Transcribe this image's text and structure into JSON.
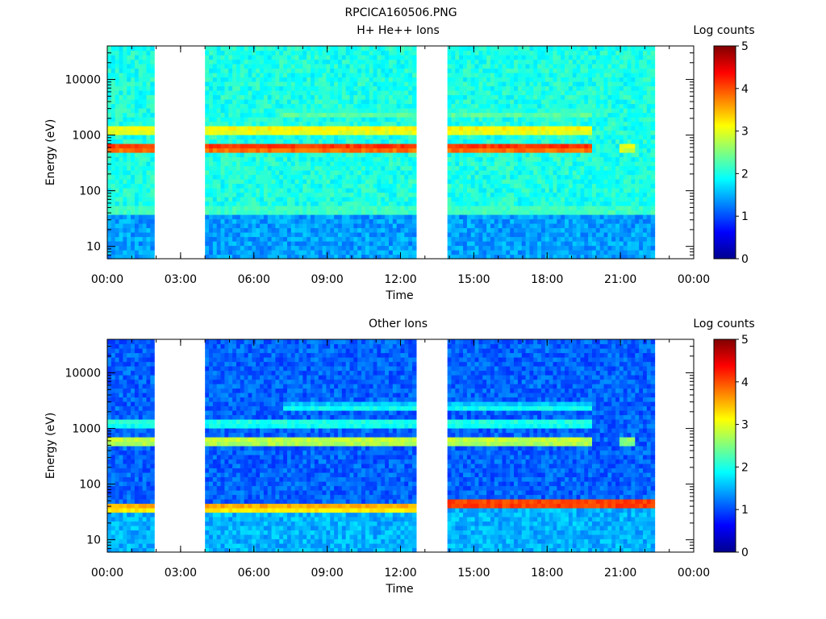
{
  "figure": {
    "title": "RPCICA160506.PNG"
  },
  "chart_data": [
    {
      "type": "heatmap",
      "title": "H+ He++ Ions",
      "xlabel": "Time",
      "ylabel": "Energy (eV)",
      "x_ticks": [
        "00:00",
        "03:00",
        "06:00",
        "09:00",
        "12:00",
        "15:00",
        "18:00",
        "21:00",
        "00:00"
      ],
      "x_range_hours": [
        0,
        24
      ],
      "y_scale": "log",
      "y_range": [
        6,
        40000
      ],
      "y_ticks": [
        10,
        100,
        1000,
        10000
      ],
      "y_tick_labels": [
        "10",
        "100",
        "1000",
        "10000"
      ],
      "colorbar": {
        "label": "Log counts",
        "range": [
          0,
          5
        ],
        "ticks": [
          "0",
          "1",
          "2",
          "3",
          "4",
          "5"
        ]
      },
      "data_gaps_hours": [
        [
          2.0,
          4.0
        ],
        [
          12.7,
          14.0
        ],
        [
          22.4,
          24.0
        ]
      ],
      "background_log_counts": 2.0,
      "bands": [
        {
          "energy_ev": 620,
          "log_counts": 4.2,
          "hours": [
            [
              0,
              2.0
            ],
            [
              4.0,
              12.7
            ],
            [
              14.0,
              19.8
            ]
          ]
        },
        {
          "energy_ev": 1250,
          "log_counts": 3.3,
          "hours": [
            [
              0,
              2.0
            ],
            [
              4.0,
              12.7
            ],
            [
              14.0,
              19.8
            ]
          ]
        },
        {
          "energy_ev": 2400,
          "log_counts": 2.4,
          "hours": [
            [
              7.2,
              12.7
            ],
            [
              14.0,
              19.8
            ]
          ]
        },
        {
          "energy_ev": 45,
          "log_counts": 2.4,
          "hours": [
            [
              0,
              2.0
            ],
            [
              4.0,
              12.7
            ],
            [
              14.0,
              22.4
            ]
          ]
        },
        {
          "energy_ev": 600,
          "log_counts": 3.2,
          "hours": [
            [
              21.0,
              21.6
            ]
          ]
        }
      ]
    },
    {
      "type": "heatmap",
      "title": "Other Ions",
      "xlabel": "Time",
      "ylabel": "Energy (eV)",
      "x_ticks": [
        "00:00",
        "03:00",
        "06:00",
        "09:00",
        "12:00",
        "15:00",
        "18:00",
        "21:00",
        "00:00"
      ],
      "x_range_hours": [
        0,
        24
      ],
      "y_scale": "log",
      "y_range": [
        6,
        40000
      ],
      "y_ticks": [
        10,
        100,
        1000,
        10000
      ],
      "y_tick_labels": [
        "10",
        "100",
        "1000",
        "10000"
      ],
      "colorbar": {
        "label": "Log counts",
        "range": [
          0,
          5
        ],
        "ticks": [
          "0",
          "1",
          "2",
          "3",
          "4",
          "5"
        ]
      },
      "data_gaps_hours": [
        [
          2.0,
          4.0
        ],
        [
          12.7,
          14.0
        ],
        [
          22.4,
          24.0
        ]
      ],
      "background_log_counts": 1.1,
      "bands": [
        {
          "energy_ev": 40,
          "log_counts": 3.6,
          "hours": [
            [
              0,
              2.0
            ],
            [
              4.0,
              12.7
            ]
          ]
        },
        {
          "energy_ev": 45,
          "log_counts": 4.3,
          "hours": [
            [
              14.0,
              22.4
            ]
          ]
        },
        {
          "energy_ev": 600,
          "log_counts": 3.0,
          "hours": [
            [
              0,
              2.0
            ],
            [
              4.0,
              12.7
            ],
            [
              14.0,
              19.8
            ]
          ]
        },
        {
          "energy_ev": 1250,
          "log_counts": 2.2,
          "hours": [
            [
              0,
              2.0
            ],
            [
              4.0,
              12.7
            ],
            [
              14.0,
              19.8
            ]
          ]
        },
        {
          "energy_ev": 2400,
          "log_counts": 2.0,
          "hours": [
            [
              7.2,
              12.7
            ],
            [
              14.0,
              19.8
            ]
          ]
        },
        {
          "energy_ev": 600,
          "log_counts": 2.8,
          "hours": [
            [
              21.0,
              21.6
            ]
          ]
        }
      ]
    }
  ]
}
